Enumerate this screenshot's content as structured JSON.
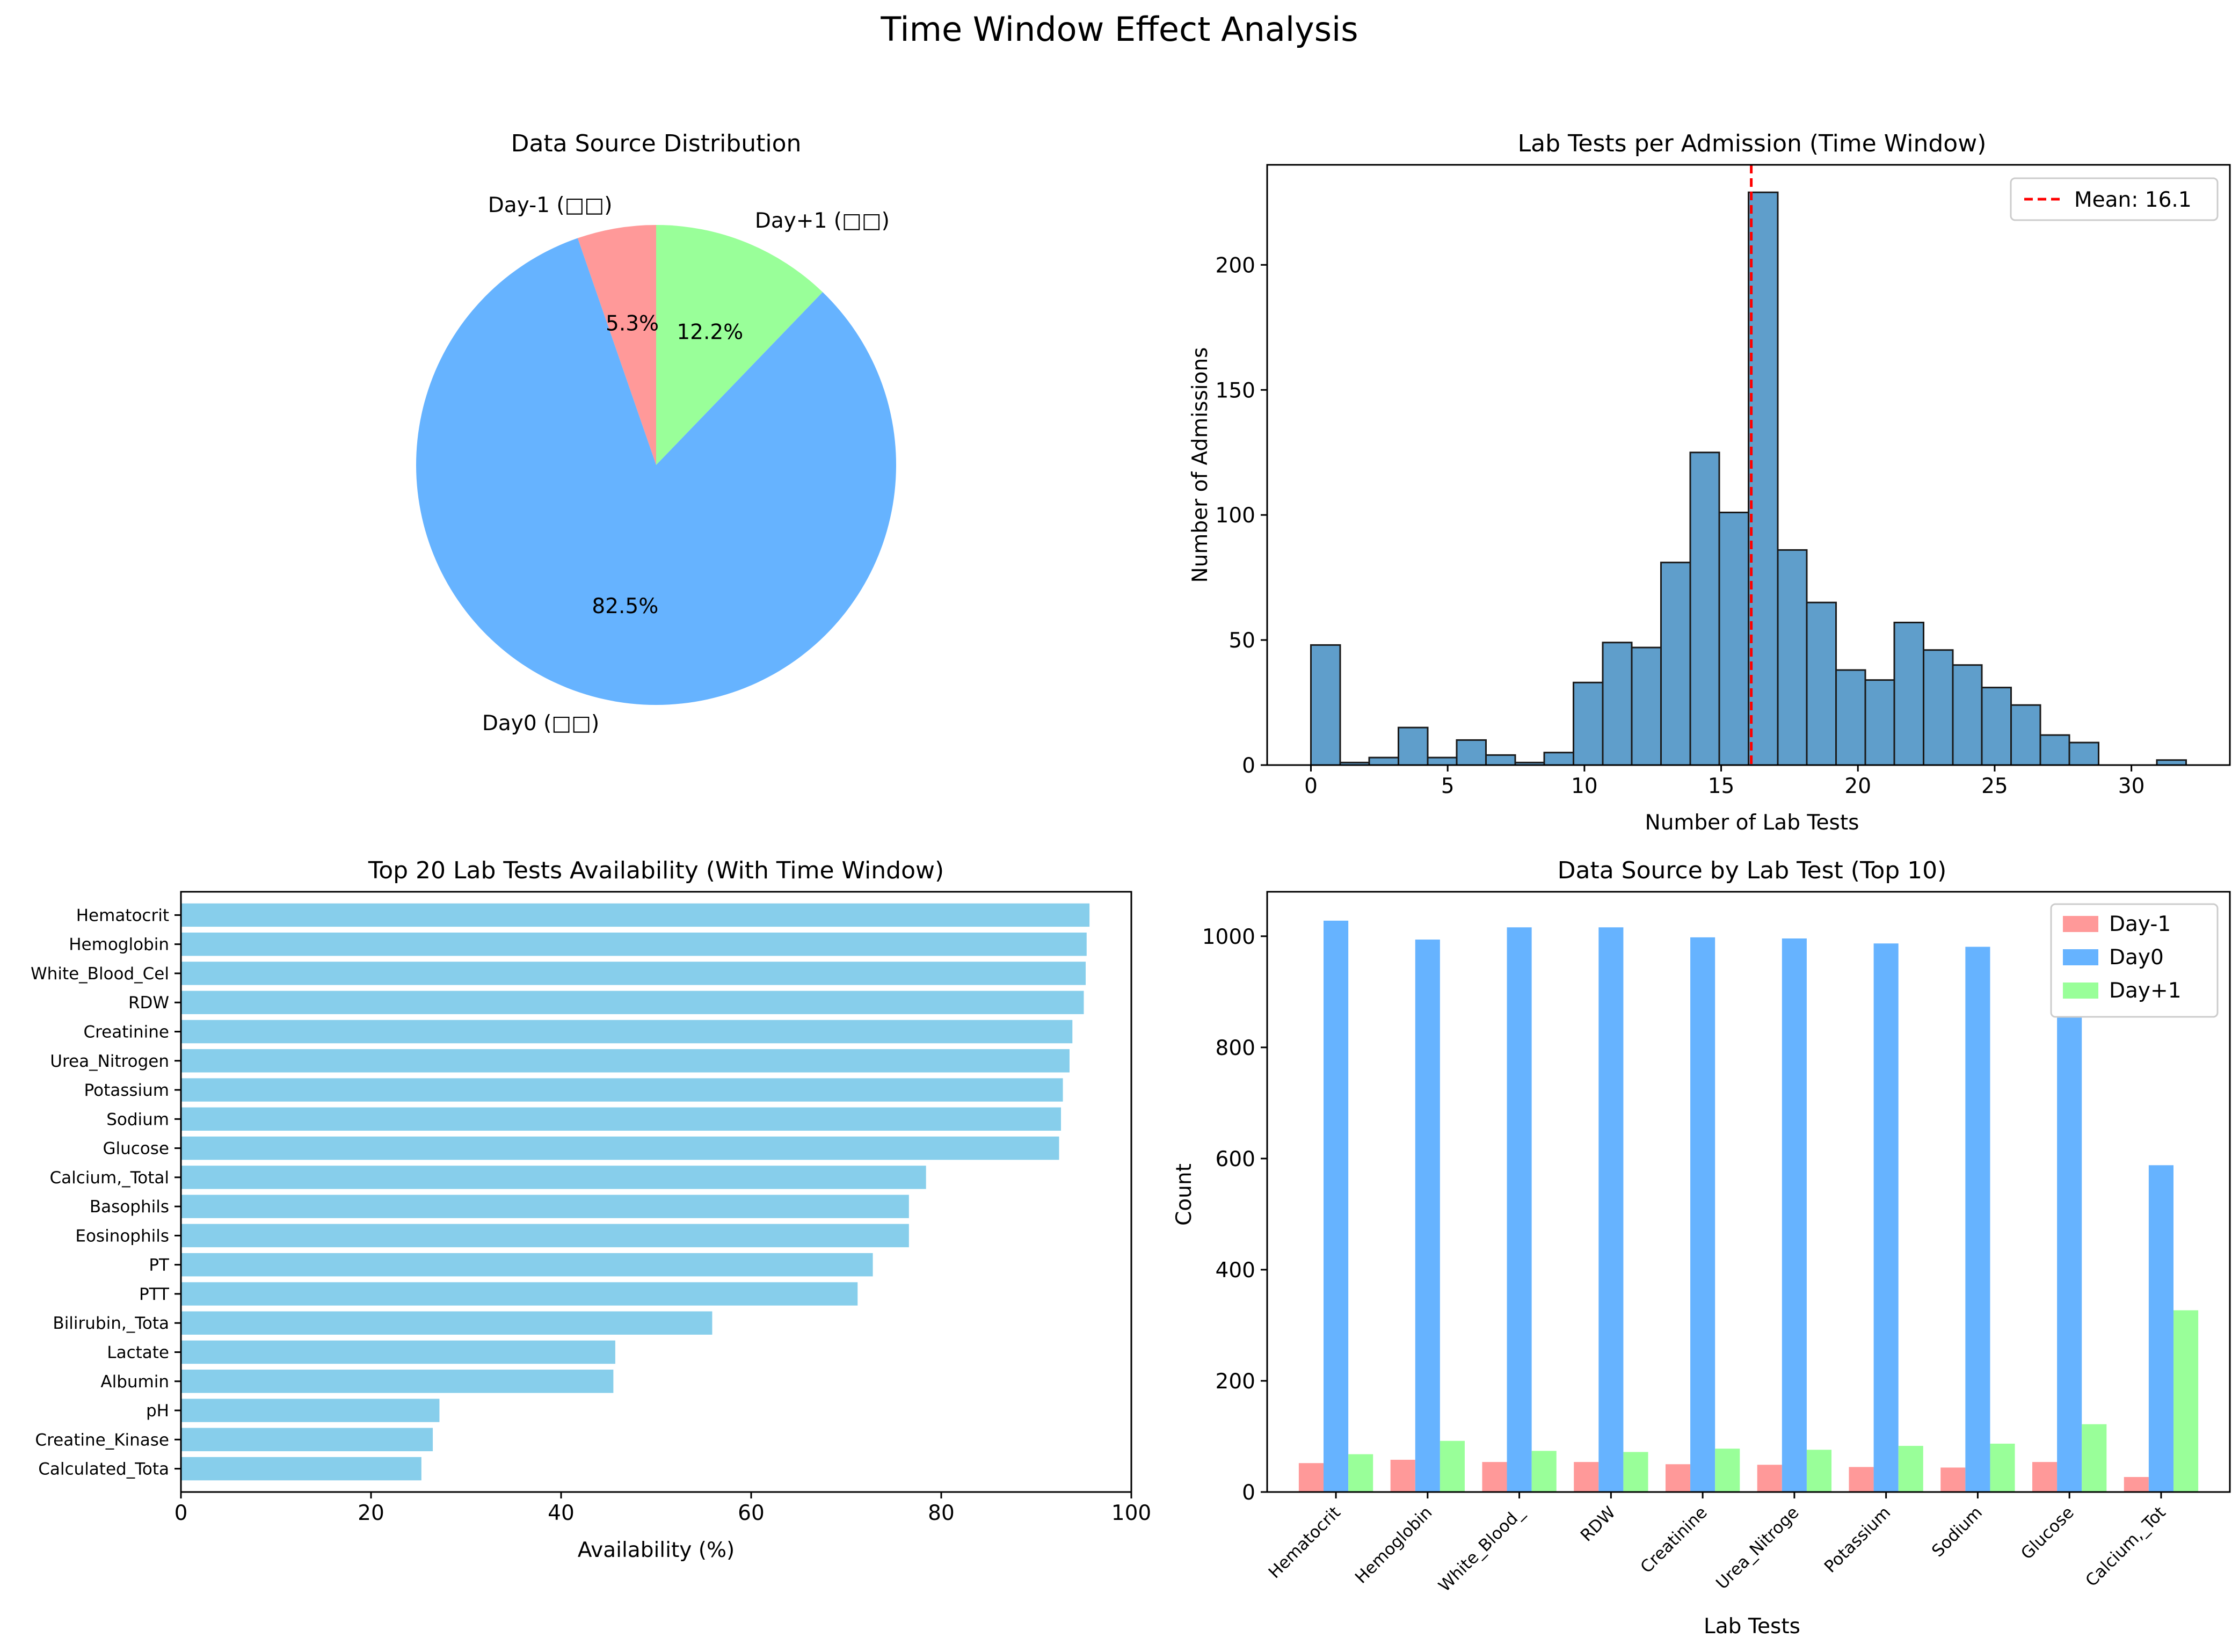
{
  "figure": {
    "title": "Time Window Effect Analysis"
  },
  "chart_data": [
    {
      "type": "pie",
      "title": "Data Source Distribution",
      "labels": [
        "Day-1 (□□)",
        "Day0 (□□)",
        "Day+1 (□□)"
      ],
      "values": [
        5.3,
        82.5,
        12.2
      ],
      "value_labels": [
        "5.3%",
        "82.5%",
        "12.2%"
      ],
      "colors": [
        "#ff9999",
        "#66b3ff",
        "#99ff99"
      ],
      "start_angle_deg": 90,
      "direction": "counterclockwise"
    },
    {
      "type": "bar",
      "subtype": "histogram",
      "title": "Lab Tests per Admission (Time Window)",
      "xlabel": "Number of Lab Tests",
      "ylabel": "Number of Admissions",
      "bin_edges": [
        0,
        1.07,
        2.13,
        3.2,
        4.27,
        5.33,
        6.4,
        7.47,
        8.53,
        9.6,
        10.67,
        11.73,
        12.8,
        13.87,
        14.93,
        16,
        17.07,
        18.13,
        19.2,
        20.27,
        21.33,
        22.4,
        23.47,
        24.53,
        25.6,
        26.67,
        27.73,
        28.8,
        29.87,
        30.93,
        32
      ],
      "values": [
        48,
        1,
        3,
        15,
        3,
        10,
        4,
        1,
        5,
        33,
        49,
        47,
        81,
        125,
        101,
        229,
        86,
        65,
        38,
        34,
        57,
        46,
        40,
        31,
        24,
        12,
        9,
        0,
        0,
        2
      ],
      "xlim": [
        -1.6,
        33.6
      ],
      "ylim": [
        0,
        240
      ],
      "xticks": [
        0,
        5,
        10,
        15,
        20,
        25,
        30
      ],
      "yticks": [
        0,
        50,
        100,
        150,
        200
      ],
      "mean_line": {
        "value": 16.1,
        "label": "Mean: 16.1",
        "color": "#ff0000"
      },
      "bar_color": "#5f9ecb",
      "legend_position": "top-right"
    },
    {
      "type": "bar",
      "orientation": "horizontal",
      "title": "Top 20 Lab Tests Availability (With Time Window)",
      "xlabel": "Availability (%)",
      "categories": [
        "Hematocrit",
        "Hemoglobin",
        "White_Blood_Cel",
        "RDW",
        "Creatinine",
        "Urea_Nitrogen",
        "Potassium",
        "Sodium",
        "Glucose",
        "Calcium,_Total",
        "Basophils",
        "Eosinophils",
        "PT",
        "PTT",
        "Bilirubin,_Tota",
        "Lactate",
        "Albumin",
        "pH",
        "Creatine_Kinase",
        "Calculated_Tota"
      ],
      "values": [
        95.6,
        95.3,
        95.2,
        95.0,
        93.8,
        93.5,
        92.8,
        92.6,
        92.4,
        78.4,
        76.6,
        76.6,
        72.8,
        71.2,
        55.9,
        45.7,
        45.5,
        27.2,
        26.5,
        25.3
      ],
      "xlim": [
        0,
        100
      ],
      "xticks": [
        0,
        20,
        40,
        60,
        80,
        100
      ],
      "bar_color": "#87ceeb"
    },
    {
      "type": "bar",
      "subtype": "grouped",
      "title": "Data Source by Lab Test (Top 10)",
      "xlabel": "Lab Tests",
      "ylabel": "Count",
      "categories": [
        "Hematocrit",
        "Hemoglobin",
        "White_Blood_",
        "RDW",
        "Creatinine",
        "Urea_Nitroge",
        "Potassium",
        "Sodium",
        "Glucose",
        "Calcium,_Tot"
      ],
      "series": [
        {
          "name": "Day-1",
          "color": "#ff9999",
          "values": [
            52,
            58,
            54,
            54,
            50,
            49,
            45,
            44,
            54,
            27
          ]
        },
        {
          "name": "Day0",
          "color": "#66b3ff",
          "values": [
            1028,
            994,
            1016,
            1016,
            998,
            996,
            987,
            981,
            935,
            588
          ]
        },
        {
          "name": "Day+1",
          "color": "#99ff99",
          "values": [
            68,
            92,
            74,
            72,
            78,
            76,
            83,
            87,
            122,
            327
          ]
        }
      ],
      "ylim": [
        0,
        1080
      ],
      "yticks": [
        0,
        200,
        400,
        600,
        800,
        1000
      ],
      "legend_position": "top-right"
    }
  ]
}
